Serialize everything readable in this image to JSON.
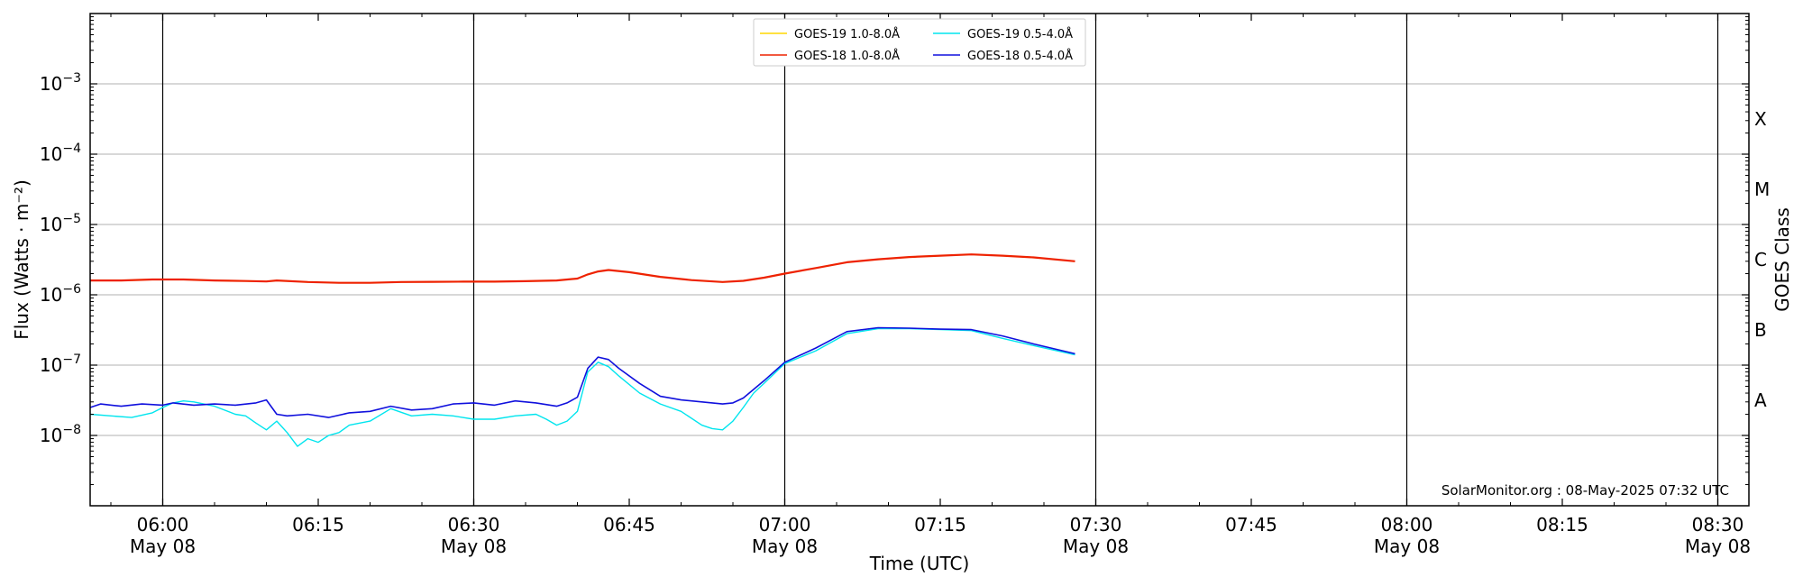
{
  "chart_data": {
    "type": "line",
    "xlabel": "Time (UTC)",
    "ylabel": "Flux (Watts · m⁻²)",
    "y2label": "GOES Class",
    "yscale": "log",
    "ylim": [
      1e-09,
      0.01
    ],
    "xlim": [
      "05:53",
      "08:33"
    ],
    "x_ticks": [
      {
        "time": "06:00",
        "label": "06:00",
        "sublabel": "May 08"
      },
      {
        "time": "06:15",
        "label": "06:15",
        "sublabel": ""
      },
      {
        "time": "06:30",
        "label": "06:30",
        "sublabel": "May 08"
      },
      {
        "time": "06:45",
        "label": "06:45",
        "sublabel": ""
      },
      {
        "time": "07:00",
        "label": "07:00",
        "sublabel": "May 08"
      },
      {
        "time": "07:15",
        "label": "07:15",
        "sublabel": ""
      },
      {
        "time": "07:30",
        "label": "07:30",
        "sublabel": "May 08"
      },
      {
        "time": "07:45",
        "label": "07:45",
        "sublabel": ""
      },
      {
        "time": "08:00",
        "label": "08:00",
        "sublabel": "May 08"
      },
      {
        "time": "08:15",
        "label": "08:15",
        "sublabel": ""
      },
      {
        "time": "08:30",
        "label": "08:30",
        "sublabel": "May 08"
      }
    ],
    "vertical_lines": [
      "06:00",
      "06:30",
      "07:00",
      "07:30",
      "08:00",
      "08:30"
    ],
    "y_ticks": [
      {
        "exp": -8,
        "value": 1e-08
      },
      {
        "exp": -7,
        "value": 1e-07
      },
      {
        "exp": -6,
        "value": 1e-06
      },
      {
        "exp": -5,
        "value": 1e-05
      },
      {
        "exp": -4,
        "value": 0.0001
      },
      {
        "exp": -3,
        "value": 0.001
      }
    ],
    "goes_classes": [
      {
        "label": "A",
        "value": 3.16e-08
      },
      {
        "label": "B",
        "value": 3.16e-07
      },
      {
        "label": "C",
        "value": 3.16e-06
      },
      {
        "label": "M",
        "value": 3.16e-05
      },
      {
        "label": "X",
        "value": 0.000316
      }
    ],
    "grid": "horizontal",
    "legend": {
      "position": "top-center",
      "columns": 2
    },
    "annotation": "SolarMonitor.org : 08-May-2025 07:32 UTC",
    "series": [
      {
        "name": "GOES-19 1.0-8.0Å",
        "color": "#ffd700",
        "width": 1.2,
        "x": [],
        "y": []
      },
      {
        "name": "GOES-18 1.0-8.0Å",
        "color": "#ee2200",
        "width": 2.2,
        "x": [
          "05:53",
          "05:56",
          "05:59",
          "06:02",
          "06:05",
          "06:08",
          "06:10",
          "06:11",
          "06:14",
          "06:17",
          "06:20",
          "06:23",
          "06:26",
          "06:29",
          "06:32",
          "06:35",
          "06:38",
          "06:40",
          "06:41",
          "06:42",
          "06:43",
          "06:45",
          "06:48",
          "06:51",
          "06:54",
          "06:56",
          "06:58",
          "07:00",
          "07:03",
          "07:06",
          "07:09",
          "07:12",
          "07:15",
          "07:18",
          "07:21",
          "07:24",
          "07:28"
        ],
        "y": [
          1.6e-06,
          1.6e-06,
          1.65e-06,
          1.65e-06,
          1.6e-06,
          1.57e-06,
          1.55e-06,
          1.6e-06,
          1.52e-06,
          1.48e-06,
          1.48e-06,
          1.52e-06,
          1.53e-06,
          1.54e-06,
          1.54e-06,
          1.56e-06,
          1.6e-06,
          1.7e-06,
          1.95e-06,
          2.15e-06,
          2.25e-06,
          2.1e-06,
          1.8e-06,
          1.62e-06,
          1.52e-06,
          1.58e-06,
          1.75e-06,
          2e-06,
          2.4e-06,
          2.9e-06,
          3.2e-06,
          3.45e-06,
          3.6e-06,
          3.75e-06,
          3.6e-06,
          3.4e-06,
          3e-06
        ]
      },
      {
        "name": "GOES-19 0.5-4.0Å",
        "color": "#00e5ee",
        "width": 1.4,
        "x": [
          "05:53",
          "05:55",
          "05:57",
          "05:59",
          "06:00",
          "06:01",
          "06:02",
          "06:03",
          "06:05",
          "06:07",
          "06:08",
          "06:09",
          "06:10",
          "06:11",
          "06:12",
          "06:13",
          "06:14",
          "06:15",
          "06:16",
          "06:17",
          "06:18",
          "06:20",
          "06:22",
          "06:24",
          "06:26",
          "06:28",
          "06:30",
          "06:32",
          "06:34",
          "06:36",
          "06:37",
          "06:38",
          "06:39",
          "06:40",
          "06:41",
          "06:42",
          "06:43",
          "06:44",
          "06:46",
          "06:48",
          "06:50",
          "06:52",
          "06:53",
          "06:54",
          "06:55",
          "06:56",
          "06:57",
          "06:58",
          "07:00",
          "07:03",
          "07:06",
          "07:09",
          "07:12",
          "07:15",
          "07:18",
          "07:21",
          "07:24",
          "07:28"
        ],
        "y": [
          2e-08,
          1.9e-08,
          1.8e-08,
          2.1e-08,
          2.5e-08,
          2.9e-08,
          3.1e-08,
          3e-08,
          2.6e-08,
          2e-08,
          1.9e-08,
          1.5e-08,
          1.2e-08,
          1.6e-08,
          1.1e-08,
          7e-09,
          9e-09,
          8e-09,
          1e-08,
          1.1e-08,
          1.4e-08,
          1.6e-08,
          2.4e-08,
          1.9e-08,
          2e-08,
          1.9e-08,
          1.7e-08,
          1.7e-08,
          1.9e-08,
          2e-08,
          1.7e-08,
          1.4e-08,
          1.6e-08,
          2.2e-08,
          8e-08,
          1.1e-07,
          9.5e-08,
          7e-08,
          4e-08,
          2.8e-08,
          2.2e-08,
          1.4e-08,
          1.25e-08,
          1.2e-08,
          1.6e-08,
          2.5e-08,
          4e-08,
          5.5e-08,
          1.05e-07,
          1.6e-07,
          2.8e-07,
          3.3e-07,
          3.3e-07,
          3.2e-07,
          3.1e-07,
          2.4e-07,
          1.9e-07,
          1.4e-07
        ]
      },
      {
        "name": "GOES-18 0.5-4.0Å",
        "color": "#1010dd",
        "width": 1.6,
        "x": [
          "05:53",
          "05:54",
          "05:56",
          "05:58",
          "06:00",
          "06:01",
          "06:03",
          "06:05",
          "06:07",
          "06:09",
          "06:10",
          "06:11",
          "06:12",
          "06:14",
          "06:16",
          "06:18",
          "06:20",
          "06:22",
          "06:24",
          "06:26",
          "06:28",
          "06:30",
          "06:32",
          "06:34",
          "06:36",
          "06:38",
          "06:39",
          "06:40",
          "06:41",
          "06:42",
          "06:43",
          "06:44",
          "06:46",
          "06:48",
          "06:50",
          "06:52",
          "06:54",
          "06:55",
          "06:56",
          "06:58",
          "07:00",
          "07:03",
          "07:06",
          "07:09",
          "07:12",
          "07:15",
          "07:18",
          "07:21",
          "07:24",
          "07:28"
        ],
        "y": [
          2.5e-08,
          2.8e-08,
          2.6e-08,
          2.8e-08,
          2.7e-08,
          2.9e-08,
          2.7e-08,
          2.8e-08,
          2.7e-08,
          2.9e-08,
          3.2e-08,
          2e-08,
          1.9e-08,
          2e-08,
          1.8e-08,
          2.1e-08,
          2.2e-08,
          2.6e-08,
          2.3e-08,
          2.4e-08,
          2.8e-08,
          2.9e-08,
          2.7e-08,
          3.1e-08,
          2.9e-08,
          2.6e-08,
          2.9e-08,
          3.5e-08,
          9e-08,
          1.3e-07,
          1.2e-07,
          9e-08,
          5.5e-08,
          3.6e-08,
          3.2e-08,
          3e-08,
          2.8e-08,
          2.9e-08,
          3.4e-08,
          6e-08,
          1.1e-07,
          1.75e-07,
          3e-07,
          3.4e-07,
          3.35e-07,
          3.25e-07,
          3.2e-07,
          2.6e-07,
          2e-07,
          1.45e-07
        ]
      }
    ]
  }
}
